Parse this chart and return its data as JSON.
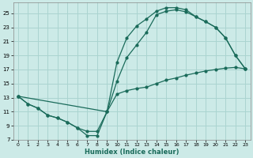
{
  "xlabel": "Humidex (Indice chaleur)",
  "background_color": "#cceae7",
  "grid_color": "#aad4d0",
  "line_color": "#1a6b5a",
  "xlim": [
    -0.5,
    23.5
  ],
  "ylim": [
    7,
    26.5
  ],
  "xticks": [
    0,
    1,
    2,
    3,
    4,
    5,
    6,
    7,
    8,
    9,
    10,
    11,
    12,
    13,
    14,
    15,
    16,
    17,
    18,
    19,
    20,
    21,
    22,
    23
  ],
  "yticks": [
    7,
    9,
    11,
    13,
    15,
    17,
    19,
    21,
    23,
    25
  ],
  "curve1_x": [
    0,
    1,
    2,
    3,
    4,
    5,
    6,
    7,
    8,
    9,
    10,
    11,
    12,
    13,
    14,
    15,
    16,
    17,
    18,
    19,
    20,
    21,
    22,
    23
  ],
  "curve1_y": [
    13.2,
    12.1,
    11.5,
    10.5,
    10.1,
    9.5,
    8.7,
    8.2,
    8.2,
    11.0,
    13.5,
    14.0,
    14.3,
    14.5,
    15.0,
    15.5,
    15.8,
    16.2,
    16.5,
    16.8,
    17.0,
    17.2,
    17.3,
    17.1
  ],
  "curve2_x": [
    0,
    1,
    2,
    3,
    4,
    5,
    6,
    7,
    8,
    9,
    10,
    11,
    12,
    13,
    14,
    15,
    16,
    17,
    18,
    19,
    20,
    21,
    22,
    23
  ],
  "curve2_y": [
    13.2,
    12.1,
    11.5,
    10.5,
    10.1,
    9.5,
    8.7,
    7.6,
    7.6,
    11.0,
    15.3,
    18.7,
    20.5,
    22.3,
    24.8,
    25.3,
    25.5,
    25.2,
    24.5,
    23.8,
    23.0,
    21.5,
    19.0,
    17.1
  ],
  "curve3_x": [
    0,
    9,
    10,
    11,
    12,
    13,
    14,
    15,
    16,
    17,
    18,
    19,
    20,
    21,
    22,
    23
  ],
  "curve3_y": [
    13.2,
    11.0,
    18.0,
    21.5,
    23.2,
    24.2,
    25.3,
    25.8,
    25.8,
    25.5,
    24.5,
    23.8,
    23.0,
    21.5,
    19.0,
    17.1
  ]
}
